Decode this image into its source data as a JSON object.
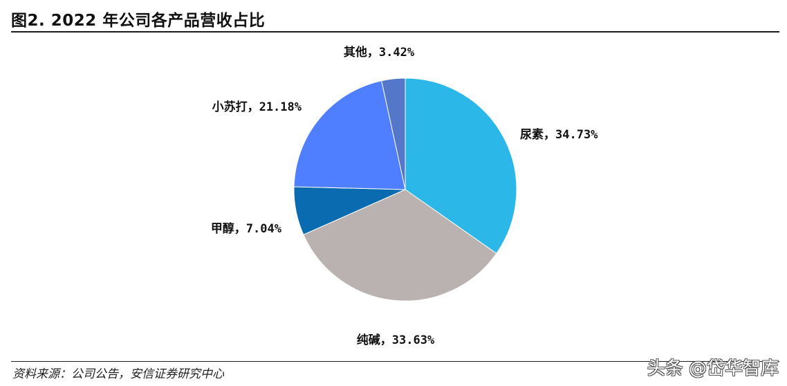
{
  "figure_title": "图2. 2022 年公司各产品营收占比",
  "source_note": "资料来源：公司公告，安信证券研究中心",
  "watermark": "头条 @岱华智库",
  "chart_data": {
    "type": "pie",
    "title": "图2. 2022 年公司各产品营收占比",
    "unit": "%",
    "slices": [
      {
        "label": "尿素",
        "value": 34.73,
        "value_text": "34.73%",
        "color": "#2bb7e8"
      },
      {
        "label": "纯碱",
        "value": 33.63,
        "value_text": "33.63%",
        "color": "#b9b2b0"
      },
      {
        "label": "甲醇",
        "value": 7.04,
        "value_text": "7.04%",
        "color": "#0a6bb0"
      },
      {
        "label": "小苏打",
        "value": 21.18,
        "value_text": "21.18%",
        "color": "#4f7fff"
      },
      {
        "label": "其他",
        "value": 3.42,
        "value_text": "3.42%",
        "color": "#5577c9"
      }
    ],
    "start_angle_deg": 0,
    "direction": "clockwise"
  }
}
